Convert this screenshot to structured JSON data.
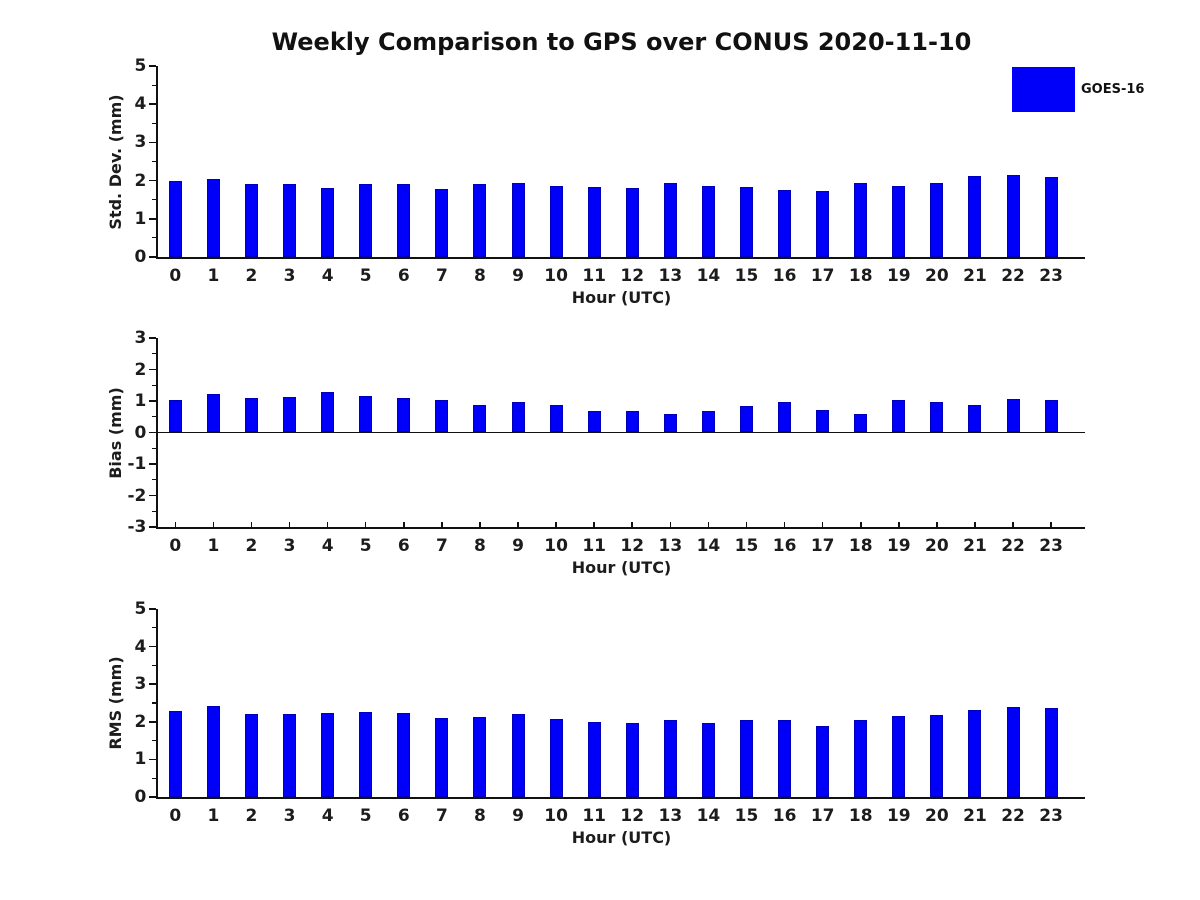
{
  "title": "Weekly Comparison to GPS over CONUS 2020-11-10",
  "legend": {
    "items": [
      {
        "label": "GOES-16",
        "color": "#0000fa"
      }
    ]
  },
  "colors": {
    "bar_fill": "#0000fa",
    "bar_edge": "#0000bb",
    "axis": "#111111",
    "text": "#1c1c1c"
  },
  "chart_data": [
    {
      "type": "bar",
      "title": "",
      "ylabel": "Std. Dev. (mm)",
      "xlabel": "Hour (UTC)",
      "ylim": [
        0,
        5
      ],
      "yticks": [
        0,
        1,
        2,
        3,
        4,
        5
      ],
      "minor_tick_step": 0.5,
      "grid": false,
      "legend_position": "top-right-of-figure",
      "categories": [
        "0",
        "1",
        "2",
        "3",
        "4",
        "5",
        "6",
        "7",
        "8",
        "9",
        "10",
        "11",
        "12",
        "13",
        "14",
        "15",
        "16",
        "17",
        "18",
        "19",
        "20",
        "21",
        "22",
        "23"
      ],
      "series": [
        {
          "name": "GOES-16",
          "values": [
            2.0,
            2.05,
            1.9,
            1.9,
            1.8,
            1.91,
            1.91,
            1.79,
            1.9,
            1.94,
            1.85,
            1.82,
            1.8,
            1.94,
            1.85,
            1.84,
            1.76,
            1.74,
            1.93,
            1.85,
            1.95,
            2.11,
            2.15,
            2.1
          ]
        }
      ]
    },
    {
      "type": "bar",
      "title": "",
      "ylabel": "Bias (mm)",
      "xlabel": "Hour (UTC)",
      "ylim": [
        -3,
        3
      ],
      "yticks": [
        -3,
        -2,
        -1,
        0,
        1,
        2,
        3
      ],
      "minor_tick_step": 0.5,
      "grid": false,
      "categories": [
        "0",
        "1",
        "2",
        "3",
        "4",
        "5",
        "6",
        "7",
        "8",
        "9",
        "10",
        "11",
        "12",
        "13",
        "14",
        "15",
        "16",
        "17",
        "18",
        "19",
        "20",
        "21",
        "22",
        "23"
      ],
      "series": [
        {
          "name": "GOES-16",
          "values": [
            1.03,
            1.23,
            1.1,
            1.12,
            1.3,
            1.17,
            1.1,
            1.02,
            0.88,
            0.97,
            0.88,
            0.69,
            0.68,
            0.6,
            0.68,
            0.83,
            0.96,
            0.72,
            0.6,
            1.04,
            0.96,
            0.88,
            1.07,
            1.04
          ]
        }
      ]
    },
    {
      "type": "bar",
      "title": "",
      "ylabel": "RMS (mm)",
      "xlabel": "Hour (UTC)",
      "ylim": [
        0,
        5
      ],
      "yticks": [
        0,
        1,
        2,
        3,
        4,
        5
      ],
      "minor_tick_step": 0.5,
      "grid": false,
      "categories": [
        "0",
        "1",
        "2",
        "3",
        "4",
        "5",
        "6",
        "7",
        "8",
        "9",
        "10",
        "11",
        "12",
        "13",
        "14",
        "15",
        "16",
        "17",
        "18",
        "19",
        "20",
        "21",
        "22",
        "23"
      ],
      "series": [
        {
          "name": "GOES-16",
          "values": [
            2.28,
            2.41,
            2.21,
            2.21,
            2.23,
            2.26,
            2.23,
            2.11,
            2.12,
            2.21,
            2.08,
            2.0,
            1.96,
            2.05,
            1.98,
            2.05,
            2.05,
            1.89,
            2.05,
            2.15,
            2.18,
            2.31,
            2.4,
            2.37
          ]
        }
      ]
    }
  ]
}
